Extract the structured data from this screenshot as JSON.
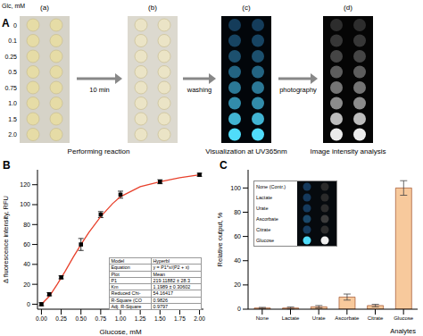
{
  "panel_A": {
    "panel_label": "A",
    "row_title": "Glc, mM",
    "row_labels": [
      "0",
      "0.1",
      "0.25",
      "0.5",
      "0.75",
      "1.0",
      "1.5",
      "2.0"
    ],
    "image_labels": [
      "(a)",
      "(b)",
      "(c)",
      "(d)"
    ],
    "arrow_labels": [
      "10 min",
      "washing",
      "photography"
    ],
    "captions": [
      "Performing reaction",
      "Visualization at UV365nm",
      "Image intensity analysis"
    ]
  },
  "chart_data": [
    {
      "type": "scatter",
      "panel_label": "B",
      "x_label": "Glucose, mM",
      "y_label": "Δ fluorescence intensity, RFU",
      "xlim": [
        -0.05,
        2.05
      ],
      "xticks": [
        {
          "value": 0,
          "label": "0.00"
        },
        {
          "value": 0.25,
          "label": "0.25"
        },
        {
          "value": 0.5,
          "label": "0.50"
        },
        {
          "value": 0.75,
          "label": "0.75"
        },
        {
          "value": 1,
          "label": "1.00"
        },
        {
          "value": 1.25,
          "label": "1.25"
        },
        {
          "value": 1.5,
          "label": "1.50"
        },
        {
          "value": 1.75,
          "label": "1.75"
        },
        {
          "value": 2,
          "label": "2.00"
        }
      ],
      "ylim": [
        -5,
        135
      ],
      "yticks": [
        0,
        20,
        40,
        60,
        80,
        100,
        120
      ],
      "grid": false,
      "series": [
        {
          "type": "line",
          "line_style": "solid",
          "color": "#e8412c",
          "x": [
            0,
            0.1,
            0.2,
            0.3,
            0.4,
            0.5,
            0.6,
            0.75,
            0.9,
            1.0,
            1.25,
            1.5,
            1.75,
            2.0
          ],
          "values": [
            0,
            8,
            20,
            33,
            47,
            60,
            72,
            88,
            101,
            108,
            118,
            123,
            127,
            130
          ]
        },
        {
          "type": "scatter",
          "marker": "square",
          "color": "#000000",
          "x": [
            0,
            0.1,
            0.25,
            0.5,
            0.75,
            1.0,
            1.5,
            2.0
          ],
          "values": [
            0,
            10,
            27,
            60,
            90,
            110,
            123,
            130
          ],
          "errors": [
            1.5,
            1.5,
            1.5,
            6,
            3,
            3.5,
            2,
            1.5
          ]
        }
      ],
      "table": [
        [
          "Model",
          "Hyperbl"
        ],
        [
          "Equation",
          "y = P1*x/(P2 + x)"
        ],
        [
          "Plot",
          "Mean"
        ],
        [
          "P1",
          "219.11882 ± 28.3"
        ],
        [
          "Km",
          "1.1989 ± 0.30602"
        ],
        [
          "Reduced Chi-",
          "54.16417"
        ],
        [
          "R-Square (CO",
          "0.9826"
        ],
        [
          "Adj. R-Square",
          "0.9797"
        ]
      ]
    },
    {
      "type": "bar",
      "panel_label": "C",
      "x_label": "Analytes",
      "y_label": "Relative output, %",
      "categories": [
        "None",
        "Lactate",
        "Urate",
        "Ascorbate",
        "Citrate",
        "Glucose"
      ],
      "values": [
        1,
        1,
        2,
        10,
        3,
        100
      ],
      "errors": [
        0.5,
        0.8,
        1,
        2.5,
        1,
        6
      ],
      "color": "#f7c99c",
      "ylim": [
        0,
        115
      ],
      "yticks": [
        0,
        20,
        40,
        60,
        80,
        100
      ],
      "grid": false,
      "inset_labels": [
        "None (Contr.)",
        "Lactate",
        "Urate",
        "Ascorbate",
        "Citrate",
        "Glucose"
      ]
    }
  ]
}
